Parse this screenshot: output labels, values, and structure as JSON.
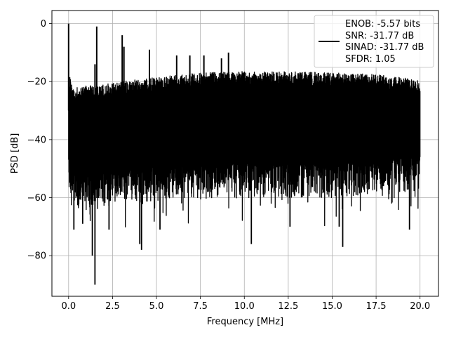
{
  "chart_data": {
    "type": "line",
    "title": "",
    "xlabel": "Frequency [MHz]",
    "ylabel": "PSD [dB]",
    "xlim": [
      -0.95,
      21.05
    ],
    "ylim": [
      -94,
      4.5
    ],
    "xticks": [
      0.0,
      2.5,
      5.0,
      7.5,
      10.0,
      12.5,
      15.0,
      17.5,
      20.0
    ],
    "xtick_labels": [
      "0.0",
      "2.5",
      "5.0",
      "7.5",
      "10.0",
      "12.5",
      "15.0",
      "17.5",
      "20.0"
    ],
    "yticks": [
      0,
      -20,
      -40,
      -60,
      -80
    ],
    "ytick_labels": [
      "0",
      "−20",
      "−40",
      "−60",
      "−80"
    ],
    "grid": true,
    "legend_position": "top-right",
    "series_color": "#000000",
    "legend_entries": [
      "ENOB: -5.57 bits",
      "SNR: -31.77 dB",
      "SINAD: -31.77 dB",
      "SFDR: 1.05"
    ],
    "x_range": [
      0.0,
      20.0
    ],
    "upper_envelope": [
      [
        0.0,
        -17
      ],
      [
        0.3,
        -23
      ],
      [
        0.5,
        -22
      ],
      [
        1.0,
        -21.5
      ],
      [
        2.0,
        -21
      ],
      [
        3.0,
        -20
      ],
      [
        5.0,
        -18.5
      ],
      [
        7.5,
        -17
      ],
      [
        10.0,
        -16.5
      ],
      [
        12.5,
        -16.5
      ],
      [
        15.0,
        -17
      ],
      [
        17.5,
        -17.5
      ],
      [
        20.0,
        -19.5
      ]
    ],
    "lower_envelope": [
      [
        0.0,
        -50
      ],
      [
        0.5,
        -57
      ],
      [
        2.5,
        -55
      ],
      [
        5.0,
        -53
      ],
      [
        10.0,
        -52
      ],
      [
        15.0,
        -52
      ],
      [
        20.0,
        -50
      ]
    ],
    "peaks": [
      {
        "x": 0.0,
        "y": 0
      },
      {
        "x": 1.6,
        "y": -1
      },
      {
        "x": 3.05,
        "y": -4
      },
      {
        "x": 3.15,
        "y": -8
      },
      {
        "x": 1.5,
        "y": -14
      },
      {
        "x": 4.6,
        "y": -9
      },
      {
        "x": 6.15,
        "y": -11
      },
      {
        "x": 6.9,
        "y": -11
      },
      {
        "x": 7.7,
        "y": -11
      },
      {
        "x": 9.1,
        "y": -10
      },
      {
        "x": 8.7,
        "y": -12
      }
    ],
    "dips": [
      {
        "x": 1.5,
        "y": -90
      },
      {
        "x": 1.35,
        "y": -80
      },
      {
        "x": 4.15,
        "y": -78
      },
      {
        "x": 4.05,
        "y": -76
      },
      {
        "x": 10.4,
        "y": -76
      },
      {
        "x": 15.6,
        "y": -77
      },
      {
        "x": 0.3,
        "y": -71
      },
      {
        "x": 0.8,
        "y": -69
      },
      {
        "x": 2.3,
        "y": -71
      },
      {
        "x": 5.2,
        "y": -71
      },
      {
        "x": 12.6,
        "y": -70
      },
      {
        "x": 15.4,
        "y": -70
      },
      {
        "x": 19.4,
        "y": -71
      }
    ]
  }
}
